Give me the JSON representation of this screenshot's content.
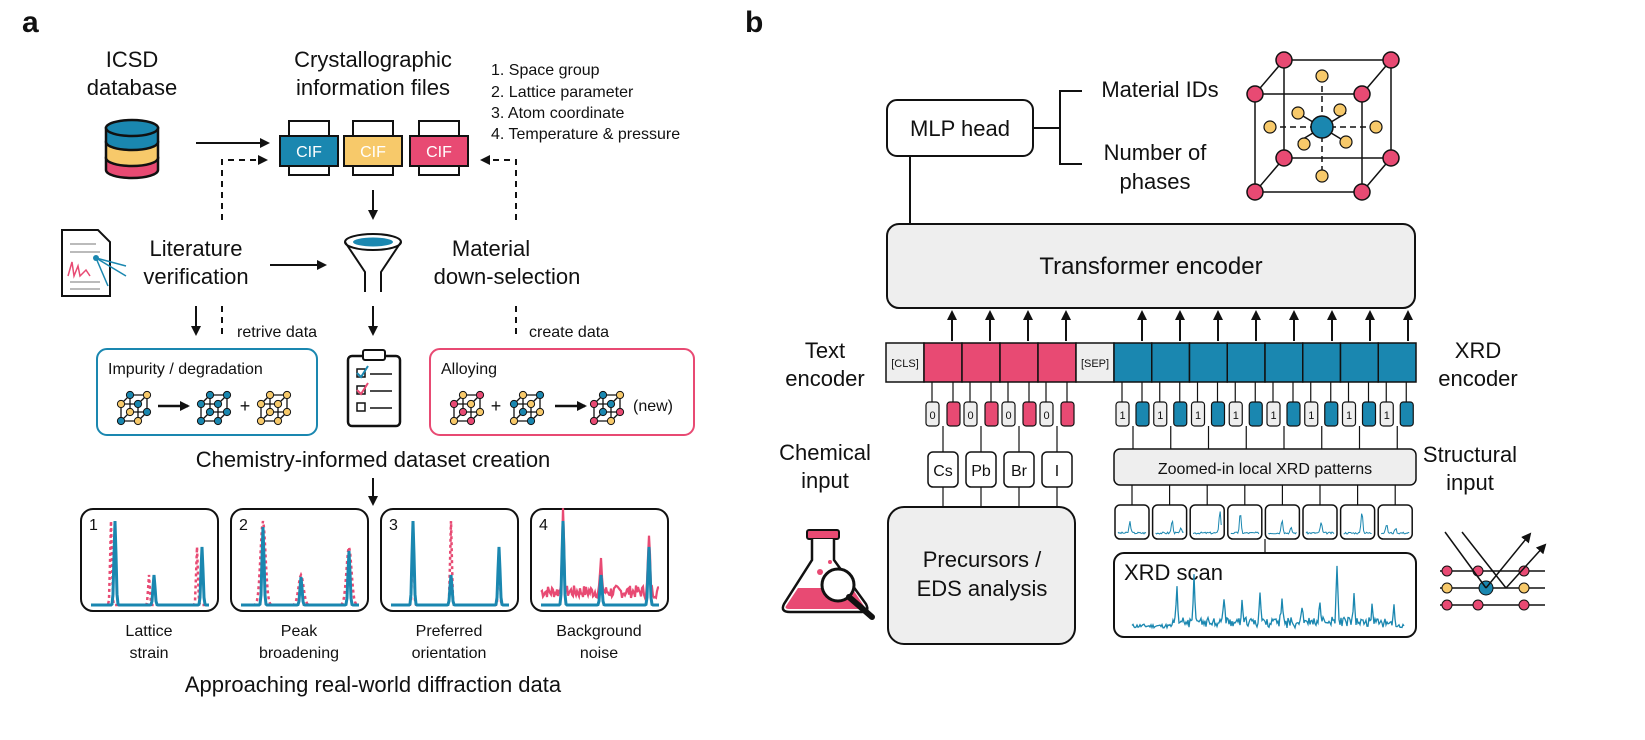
{
  "colors": {
    "blue": "#1a87b0",
    "yellow": "#f7c96a",
    "pink": "#e84a73",
    "gray": "#eeeeee",
    "dark": "#111111"
  },
  "panel_a": {
    "label": "a",
    "icsd_line1": "ICSD",
    "icsd_line2": "database",
    "cif_title_line1": "Crystallographic",
    "cif_title_line2": "information files",
    "cif_items": [
      "1. Space group",
      "2. Lattice parameter",
      "3. Atom coordinate",
      "4. Temperature & pressure"
    ],
    "cif_labels": [
      "CIF",
      "CIF",
      "CIF"
    ],
    "lit_line1": "Literature",
    "lit_line2": "verification",
    "mat_line1": "Material",
    "mat_line2": "down-selection",
    "retrive": "retrive data",
    "create": "create data",
    "impurity_title": "Impurity / degradation",
    "plus": "+",
    "alloying_title": "Alloying",
    "new": "(new)",
    "dataset_title": "Chemistry-informed dataset creation",
    "panels": [
      {
        "num": "1",
        "line1": "Lattice",
        "line2": "strain"
      },
      {
        "num": "2",
        "line1": "Peak",
        "line2": "broadening"
      },
      {
        "num": "3",
        "line1": "Preferred",
        "line2": "orientation"
      },
      {
        "num": "4",
        "line1": "Background",
        "line2": "noise"
      }
    ],
    "bottom_title": "Approaching real-world diffraction data"
  },
  "panel_b": {
    "label": "b",
    "mlp": "MLP head",
    "material_ids": "Material IDs",
    "num_phases_line1": "Number of",
    "num_phases_line2": "phases",
    "transformer": "Transformer encoder",
    "text_enc_line1": "Text",
    "text_enc_line2": "encoder",
    "xrd_enc_line1": "XRD",
    "xrd_enc_line2": "encoder",
    "cls": "[CLS]",
    "sep": "[SEP]",
    "chem_line1": "Chemical",
    "chem_line2": "input",
    "struct_line1": "Structural",
    "struct_line2": "input",
    "elements": [
      "Cs",
      "Pb",
      "Br",
      "I"
    ],
    "seg_text": "0",
    "seg_xrd": "1",
    "zoomed": "Zoomed-in local XRD patterns",
    "precursors_line1": "Precursors /",
    "precursors_line2": "EDS analysis",
    "xrd_scan": "XRD scan"
  }
}
